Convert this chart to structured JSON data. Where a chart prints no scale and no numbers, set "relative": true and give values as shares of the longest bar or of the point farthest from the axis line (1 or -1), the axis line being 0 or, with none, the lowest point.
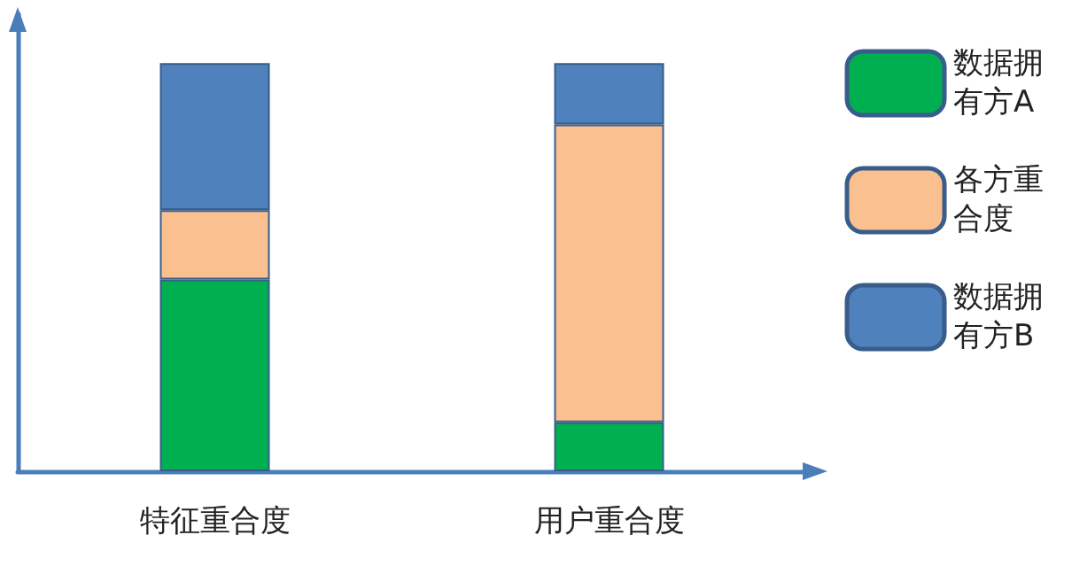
{
  "chart_data": {
    "type": "bar",
    "relative": true,
    "stacked": true,
    "categories": [
      "特征重合度",
      "用户重合度"
    ],
    "series": [
      {
        "name": "数据拥有方A",
        "color": "#00b050",
        "values": [
          0.47,
          0.12
        ]
      },
      {
        "name": "各方重合度",
        "color": "#fac090",
        "values": [
          0.17,
          0.73
        ]
      },
      {
        "name": "数据拥有方B",
        "color": "#4f81bd",
        "values": [
          0.36,
          0.15
        ]
      }
    ],
    "legend": "right",
    "grid": false
  }
}
